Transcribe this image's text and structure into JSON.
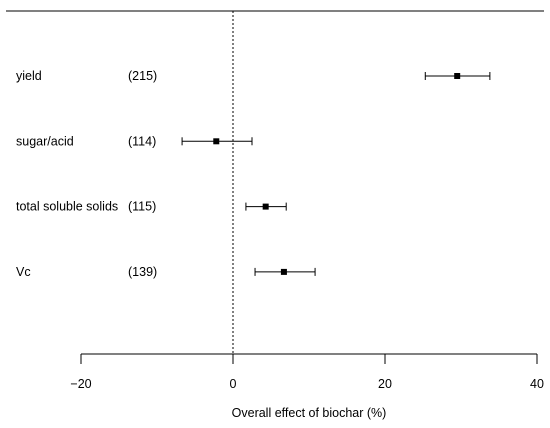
{
  "chart_data": {
    "type": "forest",
    "title": "",
    "xlabel": "Overall effect of biochar (%)",
    "ylabel": "",
    "xlim": [
      -20,
      40
    ],
    "x_ticks": [
      -20,
      0,
      20,
      40
    ],
    "x_tick_labels": [
      "−20",
      "0",
      "20",
      "40"
    ],
    "reference_line": 0,
    "grid": false,
    "legend": "none",
    "rows": [
      {
        "label": "yield",
        "n": "(215)",
        "estimate": 29.5,
        "ci_low": 25.3,
        "ci_high": 33.8
      },
      {
        "label": "sugar/acid",
        "n": "(114)",
        "estimate": -2.2,
        "ci_low": -6.7,
        "ci_high": 2.5
      },
      {
        "label": "total soluble solids",
        "n": "(115)",
        "estimate": 4.3,
        "ci_low": 1.7,
        "ci_high": 7.0
      },
      {
        "label": "Vc",
        "n": "(139)",
        "estimate": 6.7,
        "ci_low": 2.9,
        "ci_high": 10.8
      }
    ]
  }
}
